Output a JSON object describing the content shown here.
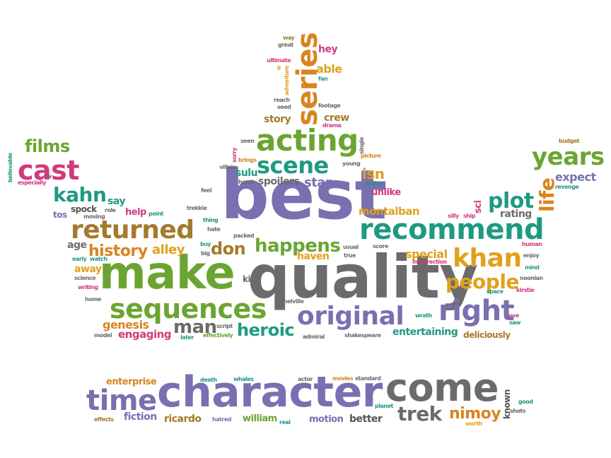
{
  "word_cloud": {
    "words": {
      "best": "best",
      "quality": "quality",
      "make": "make",
      "character": "character",
      "come": "come",
      "recommend": "recommend",
      "acting": "acting",
      "scene": "scene",
      "returned": "returned",
      "sequences": "sequences",
      "original": "original",
      "right": "right",
      "khan": "khan",
      "time": "time",
      "series": "series",
      "cast": "cast",
      "years": "years",
      "people": "people",
      "plot": "plot",
      "kahn": "kahn",
      "films": "films",
      "heroic": "heroic",
      "happens": "happens",
      "history": "history",
      "don": "don",
      "man": "man",
      "trek": "trek",
      "nimoy": "nimoy",
      "life": "life",
      "isn": "isn",
      "star": "star",
      "alley": "alley",
      "genesis": "genesis",
      "engaging": "engaging",
      "entertaining": "entertaining",
      "deliciously": "deliciously",
      "montalban": "montalban",
      "special": "special",
      "expect": "expect",
      "rating": "rating",
      "spoilers": "spoilers",
      "sulu": "sulu",
      "unlike": "unlike",
      "crew": "crew",
      "story": "story",
      "able": "able",
      "hey": "hey",
      "say": "say",
      "spock": "spock",
      "help": "help",
      "tos": "tos",
      "age": "age",
      "away": "away",
      "kirk": "kirk",
      "haven": "haven",
      "enterprise": "enterprise",
      "fiction": "fiction",
      "ricardo": "ricardo",
      "william": "william",
      "motion": "motion",
      "better": "better",
      "known": "known",
      "sci": "sci",
      "scripts": "script",
      "effectively": "effectively",
      "later": "later",
      "admiral": "admiral",
      "shakespeare": "shakespeare",
      "melville": "melville",
      "wrath": "wrath",
      "love": "love",
      "saw": "saw",
      "kirstie": "kirstie",
      "space": "space",
      "noonian": "noonian",
      "mind": "mind",
      "enjoy": "enjoy",
      "human": "human",
      "insurrection": "insurrection",
      "true": "true",
      "usual": "usual",
      "score": "score",
      "packed": "packed",
      "hate": "hate",
      "thing": "thing",
      "trekkie": "trekkie",
      "feel": "feel",
      "big": "big",
      "buy": "buy",
      "point": "point",
      "role": "role",
      "moving": "moving",
      "early": "early",
      "watch": "watch",
      "science": "science",
      "writing": "writing",
      "home": "home",
      "model": "model",
      "especially": "especially",
      "believable": "believable",
      "tv": "tv",
      "budget": "budget",
      "revenge": "revenge",
      "silly": "silly",
      "ship": "ship",
      "villain": "villain",
      "sorry": "sorry",
      "brings": "brings",
      "heart": "heart",
      "seen": "seen",
      "young": "young",
      "action": "action",
      "single": "single",
      "picture": "picture",
      "reach": "reach",
      "seed": "seed",
      "footage": "footage",
      "drama": "drama",
      "adventure": "adventure",
      "fan": "fan",
      "ultimate": "ultimate",
      "way": "way",
      "great": "great",
      "death": "death",
      "whales": "whales",
      "actor": "actor",
      "movies": "movies",
      "standard": "standard",
      "planet": "planet",
      "hatred": "hatred",
      "real": "real",
      "effects": "effects",
      "worth": "worth",
      "shots": "shots",
      "good": "good",
      "ll": "ll"
    }
  }
}
